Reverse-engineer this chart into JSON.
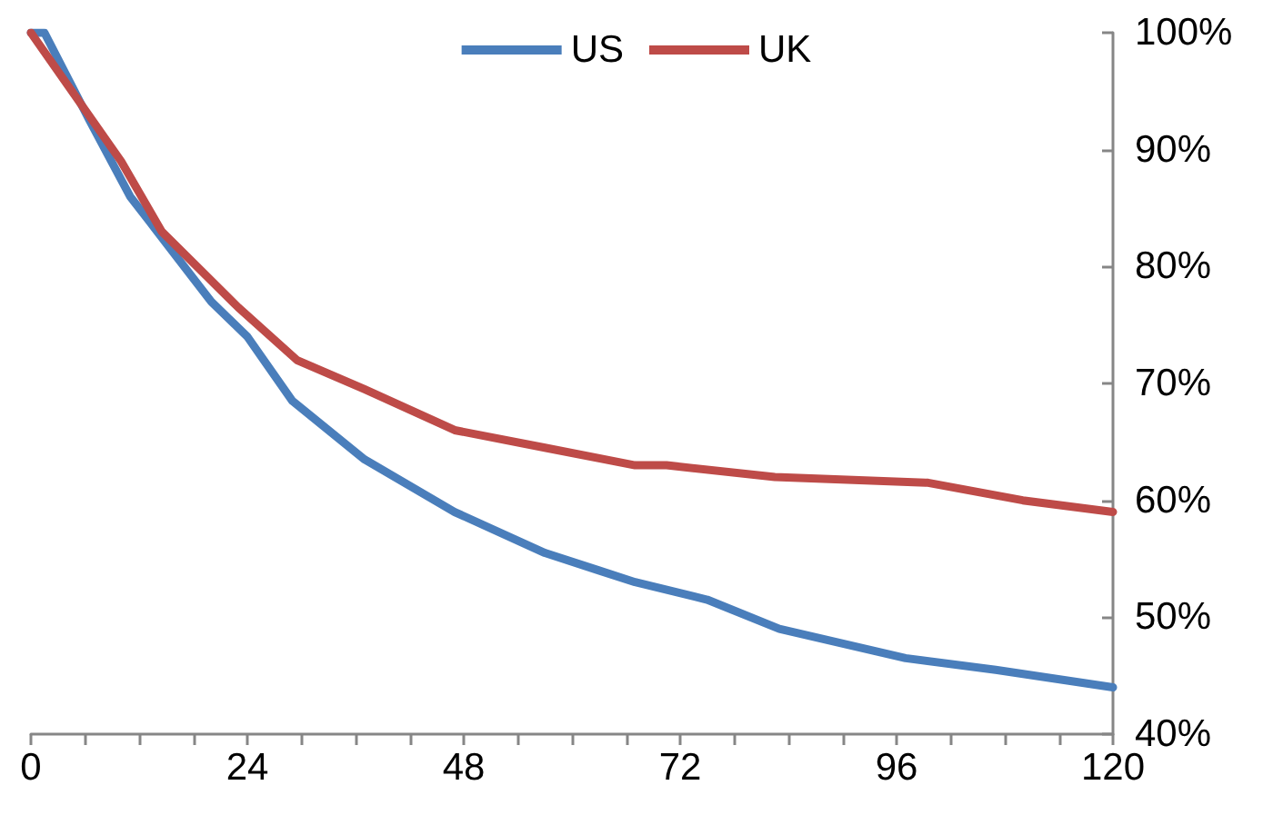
{
  "chart_data": {
    "type": "line",
    "xlim": [
      0,
      120
    ],
    "ylim": [
      40,
      100
    ],
    "xticks": [
      0,
      {
        "value": 6,
        "label": null
      },
      {
        "value": 12,
        "label": null
      },
      {
        "value": 18,
        "label": null
      },
      24,
      {
        "value": 30,
        "label": null
      },
      {
        "value": 36,
        "label": null
      },
      {
        "value": 42,
        "label": null
      },
      48,
      {
        "value": 54,
        "label": null
      },
      {
        "value": 60,
        "label": null
      },
      {
        "value": 66,
        "label": null
      },
      72,
      {
        "value": 78,
        "label": null
      },
      {
        "value": 84,
        "label": null
      },
      {
        "value": 90,
        "label": null
      },
      96,
      {
        "value": 102,
        "label": null
      },
      {
        "value": 108,
        "label": null
      },
      {
        "value": 114,
        "label": null
      },
      120
    ],
    "yticks": [
      {
        "value": 40,
        "label": "40%"
      },
      {
        "value": 50,
        "label": "50%"
      },
      {
        "value": 60,
        "label": "60%"
      },
      {
        "value": 70,
        "label": "70%"
      },
      {
        "value": 80,
        "label": "80%"
      },
      {
        "value": 90,
        "label": "90%"
      },
      {
        "value": 100,
        "label": "100%"
      }
    ],
    "series": [
      {
        "name": "US",
        "color": "#4a7ebb",
        "x": [
          0,
          1.5,
          6.5,
          11,
          13,
          16.5,
          20,
          24,
          29,
          37,
          47,
          57,
          63,
          67,
          75,
          83,
          97,
          107,
          120
        ],
        "values": [
          100,
          100,
          92.5,
          86,
          84,
          80.5,
          77,
          74,
          68.5,
          63.5,
          59,
          55.5,
          54,
          53,
          51.5,
          49,
          46.5,
          45.5,
          44
        ]
      },
      {
        "name": "UK",
        "color": "#be4b48",
        "x": [
          0,
          5,
          10,
          14.5,
          23,
          29.5,
          37,
          47,
          57,
          67,
          70.5,
          82.5,
          99.5,
          110,
          120
        ],
        "values": [
          100,
          94.5,
          89,
          83,
          76.5,
          72,
          69.5,
          66,
          64.5,
          63,
          63,
          62,
          61.5,
          60,
          59
        ]
      }
    ],
    "grid": false,
    "legend": "top",
    "marker": "none",
    "line_style": "solid"
  }
}
